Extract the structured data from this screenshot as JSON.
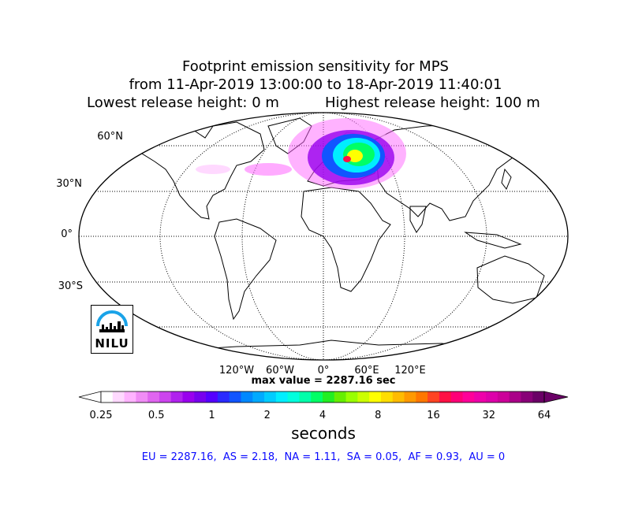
{
  "title": {
    "line1": "Footprint emission sensitivity for MPS",
    "line2": "from 11-Apr-2019 13:00:00 to 18-Apr-2019 11:40:01",
    "lowest": "Lowest release height: 0 m",
    "highest": "Highest release height: 100 m"
  },
  "map": {
    "projection": "Robinson",
    "lat_labels": [
      "60°N",
      "30°N",
      "0°",
      "30°S"
    ],
    "lon_labels": [
      "120°W",
      "60°W",
      "0°",
      "60°E",
      "120°E"
    ],
    "max_value": "max value = 2287.16 sec"
  },
  "colorbar": {
    "ticks": [
      "0.25",
      "0.5",
      "1",
      "2",
      "4",
      "8",
      "16",
      "32",
      "64"
    ],
    "label": "seconds",
    "colors": [
      "#ffffff",
      "#ffd9ff",
      "#ffb3ff",
      "#f08cf5",
      "#e065f0",
      "#cc44ee",
      "#b022ee",
      "#9900ee",
      "#7700ee",
      "#5500ff",
      "#2a2aff",
      "#1155ff",
      "#0088ff",
      "#00aaff",
      "#00ccff",
      "#00eeff",
      "#00ffdd",
      "#00ffaa",
      "#00ff66",
      "#22ee22",
      "#66ee00",
      "#99ff00",
      "#ccff00",
      "#ffff00",
      "#ffdd00",
      "#ffbb00",
      "#ff9900",
      "#ff7700",
      "#ff4422",
      "#ff1144",
      "#ff0077",
      "#ff0099",
      "#ee00aa",
      "#dd00aa",
      "#cc0099",
      "#aa0088",
      "#880077",
      "#6a0066"
    ]
  },
  "regions_text": "EU = 2287.16,  AS = 2.18,  NA = 1.11,  SA = 0.05,  AF = 0.93,  AU = 0",
  "logo": {
    "text": "NILU"
  }
}
